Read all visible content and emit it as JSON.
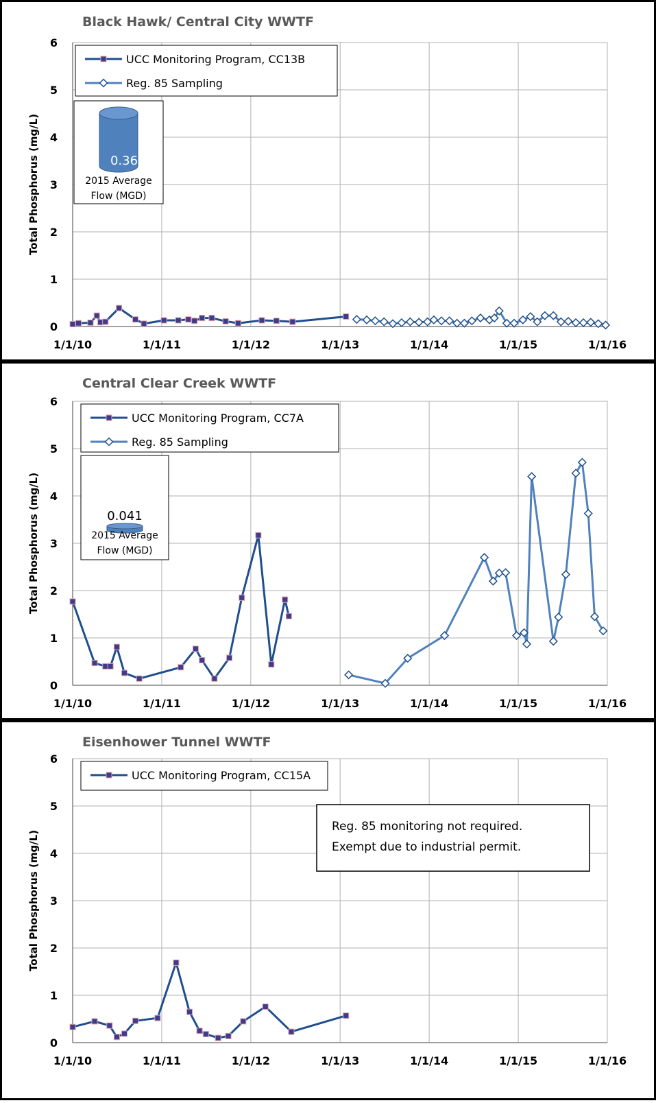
{
  "chart_data": [
    {
      "type": "line",
      "title": "Black Hawk/ Central City WWTF",
      "ylabel": "Total Phosphorus (mg/L)",
      "xlabel": "",
      "ylim": [
        0,
        6
      ],
      "yticks": [
        "0",
        "1",
        "2",
        "3",
        "4",
        "5",
        "6"
      ],
      "xlim": [
        "2010-01-01",
        "2016-01-01"
      ],
      "xticks": [
        {
          "date": "2010-01-01",
          "label": "1/1/10"
        },
        {
          "date": "2011-01-01",
          "label": "1/1/11"
        },
        {
          "date": "2012-01-01",
          "label": "1/1/12"
        },
        {
          "date": "2013-01-01",
          "label": "1/1/13"
        },
        {
          "date": "2014-01-01",
          "label": "1/1/14"
        },
        {
          "date": "2015-01-01",
          "label": "1/1/15"
        },
        {
          "date": "2016-01-01",
          "label": "1/1/16"
        }
      ],
      "grid": true,
      "legend_position": "top-left",
      "flow_box": {
        "value": "0.36",
        "label_line1": "2015 Average",
        "label_line2": "Flow (MGD)",
        "cylinder_height": "tall"
      },
      "note": null,
      "series": [
        {
          "name": "UCC Monitoring Program, CC13B",
          "color": "#1F4E8C",
          "marker": "square",
          "x": [
            "2010-01-01",
            "2010-01-25",
            "2010-03-15",
            "2010-04-10",
            "2010-04-25",
            "2010-05-15",
            "2010-07-10",
            "2010-09-15",
            "2010-10-20",
            "2011-01-10",
            "2011-03-10",
            "2011-04-20",
            "2011-05-15",
            "2011-06-15",
            "2011-07-25",
            "2011-09-20",
            "2011-11-10",
            "2012-02-15",
            "2012-04-15",
            "2012-06-20",
            "2013-01-25"
          ],
          "values": [
            0.05,
            0.07,
            0.08,
            0.23,
            0.09,
            0.1,
            0.39,
            0.15,
            0.06,
            0.13,
            0.13,
            0.15,
            0.12,
            0.18,
            0.18,
            0.11,
            0.07,
            0.13,
            0.12,
            0.1,
            0.21
          ]
        },
        {
          "name": "Reg. 85 Sampling",
          "color": "#4F81BD",
          "marker": "diamond",
          "x": [
            "2013-03-10",
            "2013-04-20",
            "2013-05-25",
            "2013-06-30",
            "2013-08-05",
            "2013-09-10",
            "2013-10-15",
            "2013-11-20",
            "2013-12-25",
            "2014-01-20",
            "2014-02-20",
            "2014-03-25",
            "2014-04-25",
            "2014-05-25",
            "2014-06-25",
            "2014-07-30",
            "2014-09-05",
            "2014-09-25",
            "2014-10-15",
            "2014-11-15",
            "2014-12-15",
            "2015-01-20",
            "2015-02-20",
            "2015-03-20",
            "2015-04-20",
            "2015-05-25",
            "2015-06-25",
            "2015-07-25",
            "2015-08-25",
            "2015-09-25",
            "2015-10-25",
            "2015-11-25",
            "2015-12-25"
          ],
          "values": [
            0.15,
            0.14,
            0.12,
            0.1,
            0.06,
            0.08,
            0.1,
            0.09,
            0.1,
            0.14,
            0.12,
            0.12,
            0.07,
            0.07,
            0.12,
            0.18,
            0.14,
            0.18,
            0.33,
            0.07,
            0.07,
            0.14,
            0.21,
            0.1,
            0.23,
            0.23,
            0.1,
            0.11,
            0.08,
            0.08,
            0.09,
            0.06,
            0.03
          ]
        }
      ]
    },
    {
      "type": "line",
      "title": "Central Clear Creek WWTF",
      "ylabel": "Total Phosphorus (mg/L)",
      "xlabel": "",
      "ylim": [
        0,
        6
      ],
      "yticks": [
        "0",
        "1",
        "2",
        "3",
        "4",
        "5",
        "6"
      ],
      "xlim": [
        "2010-01-01",
        "2016-01-01"
      ],
      "xticks": [
        {
          "date": "2010-01-01",
          "label": "1/1/10"
        },
        {
          "date": "2011-01-01",
          "label": "1/1/11"
        },
        {
          "date": "2012-01-01",
          "label": "1/1/12"
        },
        {
          "date": "2013-01-01",
          "label": "1/1/13"
        },
        {
          "date": "2014-01-01",
          "label": "1/1/14"
        },
        {
          "date": "2015-01-01",
          "label": "1/1/15"
        },
        {
          "date": "2016-01-01",
          "label": "1/1/16"
        }
      ],
      "grid": true,
      "legend_position": "top-left",
      "flow_box": {
        "value": "0.041",
        "label_line1": "2015 Average",
        "label_line2": "Flow (MGD)",
        "cylinder_height": "flat"
      },
      "note": null,
      "series": [
        {
          "name": "UCC Monitoring Program, CC7A",
          "color": "#1F4E8C",
          "marker": "square",
          "x": [
            "2010-01-01",
            "2010-04-01",
            "2010-05-15",
            "2010-06-05",
            "2010-07-01",
            "2010-08-01",
            "2010-10-01",
            "2011-03-20",
            "2011-05-20",
            "2011-06-15",
            "2011-08-05",
            "2011-10-05",
            "2011-11-25",
            "2012-02-01",
            "2012-03-25",
            "2012-05-20",
            "2012-06-05"
          ],
          "values": [
            1.77,
            0.47,
            0.4,
            0.4,
            0.81,
            0.26,
            0.14,
            0.38,
            0.77,
            0.53,
            0.14,
            0.58,
            1.85,
            3.17,
            0.44,
            1.81,
            1.46
          ]
        },
        {
          "name": "Reg. 85 Sampling",
          "color": "#4F81BD",
          "marker": "diamond",
          "x": [
            "2013-02-05",
            "2013-07-05",
            "2013-10-05",
            "2014-03-05",
            "2014-08-15",
            "2014-09-20",
            "2014-10-15",
            "2014-11-10",
            "2014-12-25",
            "2015-01-25",
            "2015-02-05",
            "2015-02-25",
            "2015-05-25",
            "2015-06-15",
            "2015-07-15",
            "2015-08-25",
            "2015-09-20",
            "2015-10-15",
            "2015-11-10",
            "2015-12-15"
          ],
          "values": [
            0.22,
            0.04,
            0.57,
            1.05,
            2.7,
            2.2,
            2.37,
            2.38,
            1.05,
            1.11,
            0.87,
            4.41,
            0.93,
            1.44,
            2.34,
            4.48,
            4.71,
            3.63,
            1.45,
            1.15
          ]
        }
      ]
    },
    {
      "type": "line",
      "title": "Eisenhower Tunnel WWTF",
      "ylabel": "Total Phosphorus (mg/L)",
      "xlabel": "",
      "ylim": [
        0,
        6
      ],
      "yticks": [
        "0",
        "1",
        "2",
        "3",
        "4",
        "5",
        "6"
      ],
      "xlim": [
        "2010-01-01",
        "2016-01-01"
      ],
      "xticks": [
        {
          "date": "2010-01-01",
          "label": "1/1/10"
        },
        {
          "date": "2011-01-01",
          "label": "1/1/11"
        },
        {
          "date": "2012-01-01",
          "label": "1/1/12"
        },
        {
          "date": "2013-01-01",
          "label": "1/1/13"
        },
        {
          "date": "2014-01-01",
          "label": "1/1/14"
        },
        {
          "date": "2015-01-01",
          "label": "1/1/15"
        },
        {
          "date": "2016-01-01",
          "label": "1/1/16"
        }
      ],
      "grid": true,
      "legend_position": "top-left",
      "flow_box": null,
      "note": {
        "line1": "Reg. 85 monitoring not required.",
        "line2": "Exempt due to industrial permit."
      },
      "series": [
        {
          "name": "UCC Monitoring Program, CC15A",
          "color": "#1F4E8C",
          "marker": "square",
          "x": [
            "2010-01-01",
            "2010-04-01",
            "2010-06-01",
            "2010-07-01",
            "2010-08-01",
            "2010-09-15",
            "2010-12-15",
            "2011-03-01",
            "2011-04-25",
            "2011-06-05",
            "2011-07-01",
            "2011-08-20",
            "2011-10-01",
            "2011-12-01",
            "2012-03-01",
            "2012-06-15",
            "2013-01-25"
          ],
          "values": [
            0.33,
            0.45,
            0.36,
            0.12,
            0.19,
            0.46,
            0.52,
            1.69,
            0.65,
            0.25,
            0.18,
            0.1,
            0.14,
            0.45,
            0.76,
            0.23,
            0.57
          ]
        }
      ]
    }
  ]
}
